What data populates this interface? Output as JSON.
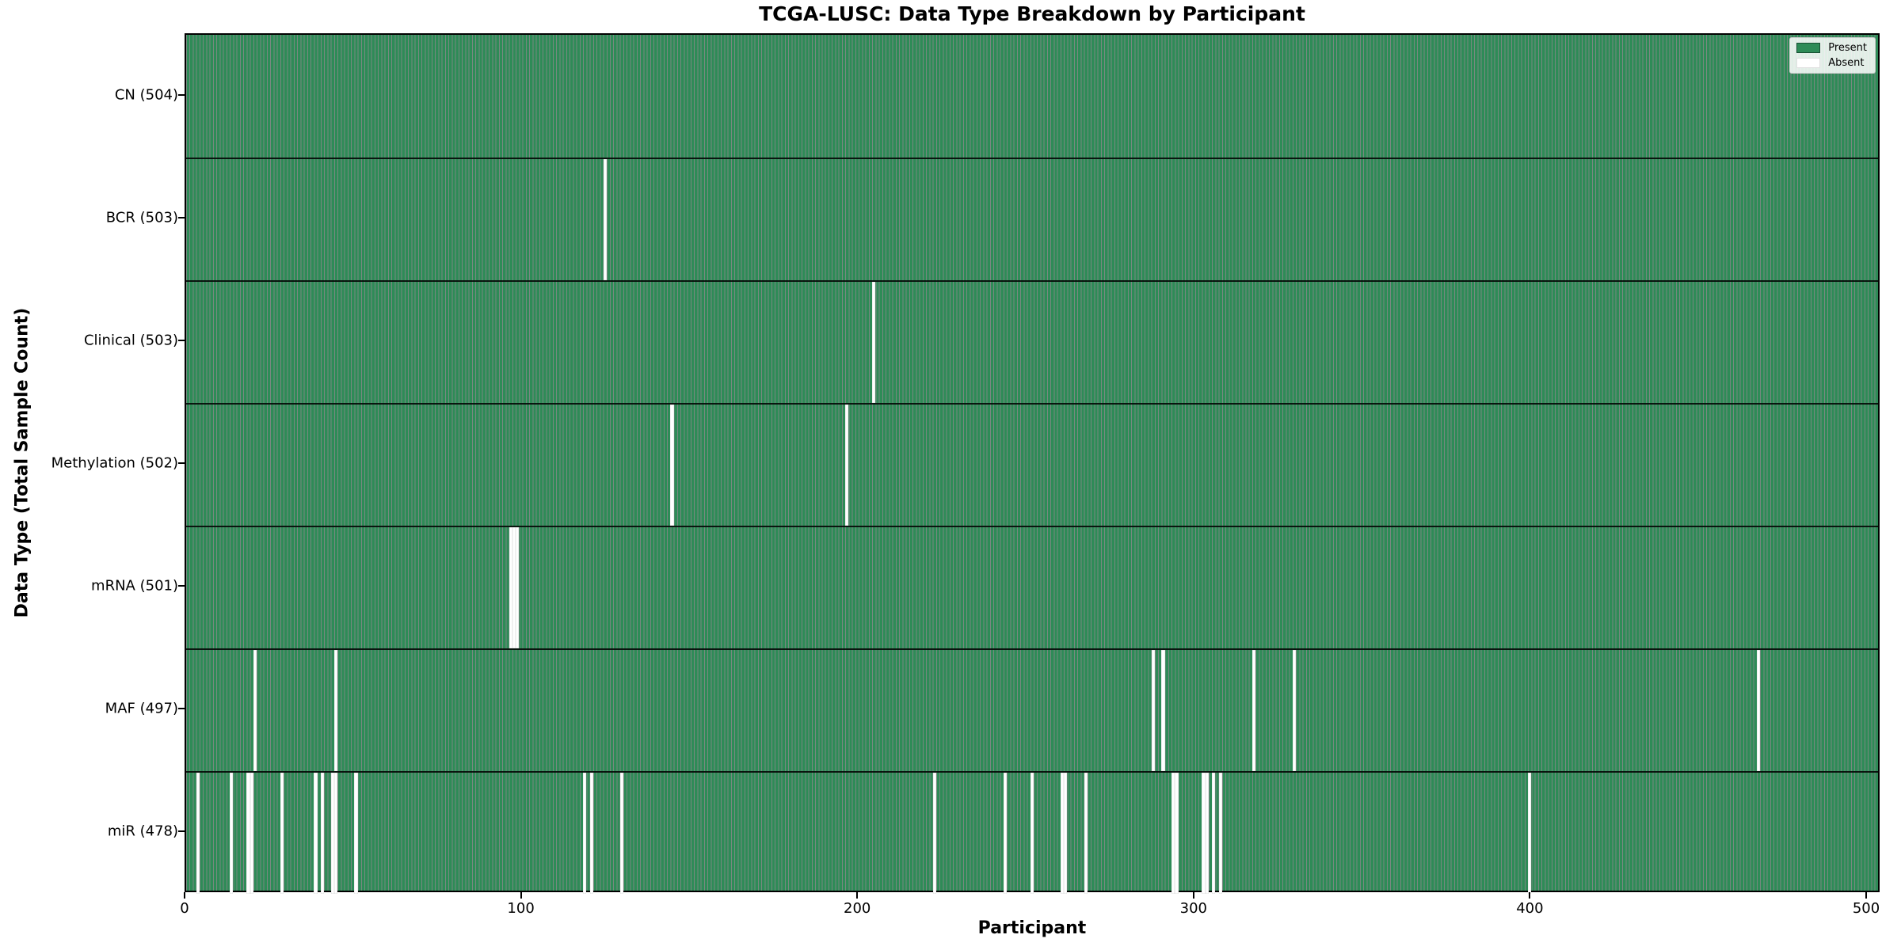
{
  "title": "TCGA-LUSC: Data Type Breakdown by Participant",
  "colors": {
    "present": "#2e8b57",
    "absent": "#ffffff",
    "bar_edge": "#174a2e",
    "plot_border": "#000000",
    "legend_border": "#cccccc"
  },
  "legend": {
    "present_label": "Present",
    "absent_label": "Absent",
    "position": "upper right"
  },
  "chart_data": {
    "type": "heatmap",
    "title": "TCGA-LUSC: Data Type Breakdown by Participant",
    "xlabel": "Participant",
    "ylabel": "Data Type (Total Sample Count)",
    "legend_entries": [
      "Present",
      "Absent"
    ],
    "n_participants": 504,
    "xlim": [
      0,
      504
    ],
    "x_ticks": [
      0,
      100,
      200,
      300,
      400,
      500
    ],
    "grid": false,
    "cell_values": {
      "present": 1,
      "absent": 0
    },
    "rows": [
      {
        "data_type": "CN",
        "label": "CN (504)",
        "present_count": 504,
        "absent_participants": []
      },
      {
        "data_type": "BCR",
        "label": "BCR (503)",
        "present_count": 503,
        "absent_participants": [
          124
        ]
      },
      {
        "data_type": "Clinical",
        "label": "Clinical (503)",
        "present_count": 503,
        "absent_participants": [
          204
        ]
      },
      {
        "data_type": "Methylation",
        "label": "Methylation (502)",
        "present_count": 502,
        "absent_participants": [
          144,
          196
        ]
      },
      {
        "data_type": "mRNA",
        "label": "mRNA (501)",
        "present_count": 501,
        "absent_participants": [
          96,
          97,
          98
        ]
      },
      {
        "data_type": "MAF",
        "label": "MAF (497)",
        "present_count": 497,
        "absent_participants": [
          20,
          44,
          287,
          290,
          317,
          329,
          467
        ]
      },
      {
        "data_type": "miR",
        "label": "miR (478)",
        "present_count": 478,
        "absent_participants": [
          3,
          13,
          18,
          19,
          28,
          38,
          40,
          43,
          44,
          50,
          118,
          120,
          129,
          222,
          243,
          251,
          260,
          261,
          267,
          293,
          294,
          302,
          303,
          305,
          307,
          399
        ]
      }
    ]
  }
}
